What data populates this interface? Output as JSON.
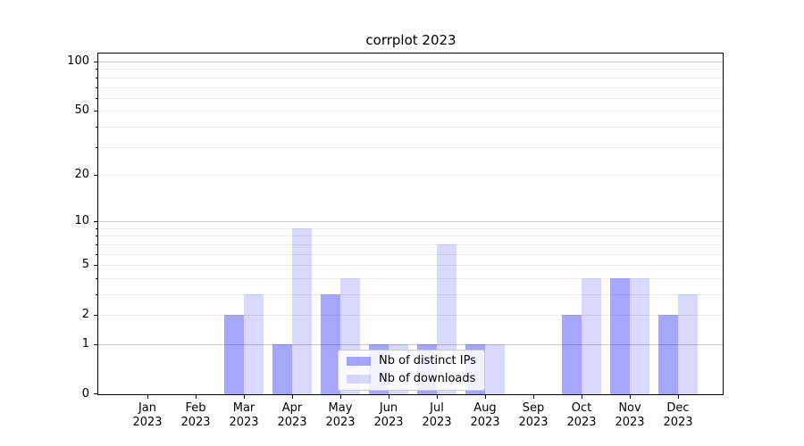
{
  "title": "corrplot 2023",
  "legend": {
    "items": [
      {
        "label": "Nb of distinct IPs",
        "series": "ips"
      },
      {
        "label": "Nb of downloads",
        "series": "downloads"
      }
    ]
  },
  "colors": {
    "bar_ips_hex": "#a6a6ff",
    "bar_downloads_hex": "#d9d9ff",
    "bar_ips_rgba": "rgba(0,0,255,0.35)",
    "bar_downloads_rgba": "rgba(0,0,255,0.15)",
    "grid_major": "#c9c9c9",
    "grid_minor": "#ededed",
    "axis": "#000000",
    "legend_border": "#cccccc"
  },
  "chart_data": {
    "type": "bar",
    "title": "corrplot 2023",
    "categories": [
      "Jan\n2023",
      "Feb\n2023",
      "Mar\n2023",
      "Apr\n2023",
      "May\n2023",
      "Jun\n2023",
      "Jul\n2023",
      "Aug\n2023",
      "Sep\n2023",
      "Oct\n2023",
      "Nov\n2023",
      "Dec\n2023"
    ],
    "series": [
      {
        "name": "Nb of distinct IPs",
        "key": "ips",
        "values": [
          0,
          0,
          2,
          1,
          3,
          1,
          1,
          1,
          0,
          2,
          4,
          2
        ]
      },
      {
        "name": "Nb of downloads",
        "key": "downloads",
        "values": [
          0,
          0,
          3,
          9,
          4,
          1,
          7,
          1,
          0,
          4,
          4,
          3
        ]
      }
    ],
    "xlabel": "",
    "ylabel": "",
    "yscale": "log1p",
    "ylim": [
      0,
      112
    ],
    "y_ticks_labeled": [
      0,
      1,
      2,
      5,
      10,
      20,
      50,
      100
    ],
    "y_ticks_minor": [
      3,
      4,
      6,
      7,
      8,
      9,
      30,
      40,
      60,
      70,
      80,
      90
    ],
    "y_grid_major": [
      1,
      10,
      100
    ],
    "y_grid_minor": [
      2,
      3,
      4,
      5,
      6,
      7,
      8,
      9,
      20,
      30,
      40,
      50,
      60,
      70,
      80,
      90
    ],
    "grid": true,
    "legend_position": "lower center"
  }
}
